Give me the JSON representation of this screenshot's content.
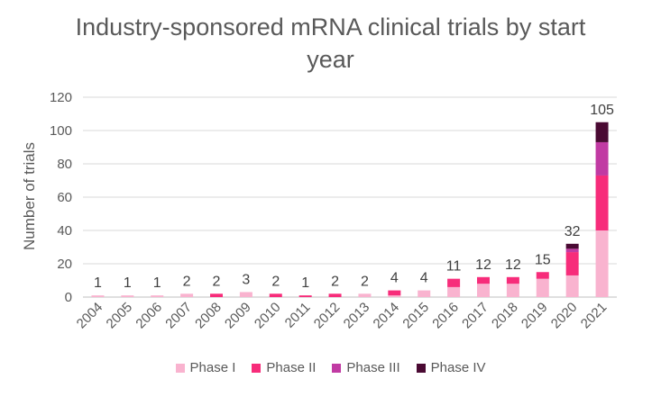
{
  "chart_data": {
    "type": "bar",
    "stacked": true,
    "title_lines": [
      "Industry-sponsored  mRNA clinical trials by start",
      "year"
    ],
    "ylabel": "Number of trials",
    "xlabel": "",
    "ylim": [
      0,
      120
    ],
    "yticks": [
      "0",
      "20",
      "40",
      "60",
      "80",
      "100",
      "120"
    ],
    "grid": true,
    "legend_position": "bottom",
    "categories": [
      "2004",
      "2005",
      "2006",
      "2007",
      "2008",
      "2009",
      "2010",
      "2011",
      "2012",
      "2013",
      "2014",
      "2015",
      "2016",
      "2017",
      "2018",
      "2019",
      "2020",
      "2021"
    ],
    "totals": [
      1,
      1,
      1,
      2,
      2,
      3,
      2,
      1,
      2,
      2,
      4,
      4,
      11,
      12,
      12,
      15,
      32,
      105
    ],
    "series": [
      {
        "name": "Phase I",
        "color": "#f9b3cf",
        "values": [
          1,
          1,
          1,
          2,
          0,
          3,
          0,
          0,
          0,
          2,
          1,
          4,
          6,
          8,
          8,
          11,
          13,
          40
        ]
      },
      {
        "name": "Phase II",
        "color": "#f72c7a",
        "values": [
          0,
          0,
          0,
          0,
          2,
          0,
          2,
          1,
          2,
          0,
          3,
          0,
          5,
          4,
          4,
          4,
          14,
          33
        ]
      },
      {
        "name": "Phase III",
        "color": "#c13aa3",
        "values": [
          0,
          0,
          0,
          0,
          0,
          0,
          0,
          0,
          0,
          0,
          0,
          0,
          0,
          0,
          0,
          0,
          2,
          20
        ]
      },
      {
        "name": "Phase IV",
        "color": "#4a0a33",
        "values": [
          0,
          0,
          0,
          0,
          0,
          0,
          0,
          0,
          0,
          0,
          0,
          0,
          0,
          0,
          0,
          0,
          3,
          12
        ]
      }
    ]
  }
}
